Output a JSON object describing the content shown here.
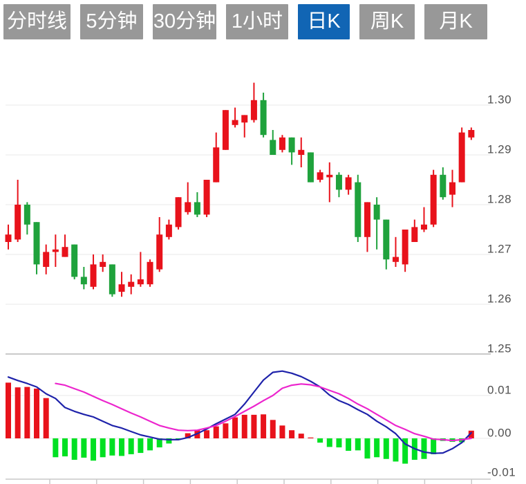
{
  "toolbar": {
    "tabs": [
      {
        "label": "分时线",
        "active": false
      },
      {
        "label": "5分钟",
        "active": false
      },
      {
        "label": "30分钟",
        "active": false
      },
      {
        "label": "1小时",
        "active": false
      },
      {
        "label": "日K",
        "active": true
      },
      {
        "label": "周K",
        "active": false
      },
      {
        "label": "月K",
        "active": false
      }
    ]
  },
  "colors": {
    "tab_inactive_bg": "#989898",
    "tab_active_bg": "#1165b4",
    "tab_text": "#ffffff",
    "candle_up": "#e8121b",
    "candle_down": "#1fa23c",
    "macd_up_bar": "#e8121b",
    "macd_down_bar": "#00e022",
    "dif_line": "#1e22aa",
    "dea_line": "#ec25cd",
    "grid_line": "#e8e8e8",
    "separator_line": "#c9c9c9",
    "axis_line": "#c9c9c9",
    "axis_label": "#505050",
    "background": "#ffffff"
  },
  "chart_data": {
    "type": "candlestick",
    "title": "",
    "legend_position": "none",
    "grid": true,
    "panels": [
      {
        "name": "price",
        "y_ticks": [
          "1.30",
          "1.29",
          "1.28",
          "1.27",
          "1.26",
          "1.25"
        ],
        "y_tick_values": [
          1.3,
          1.29,
          1.28,
          1.27,
          1.26,
          1.25
        ],
        "ylim": [
          1.2475,
          1.3075
        ]
      },
      {
        "name": "macd",
        "y_ticks": [
          "0.01",
          "0.00",
          "-0.01"
        ],
        "y_tick_values": [
          0.01,
          0.0,
          -0.01
        ],
        "ylim": [
          -0.0105,
          0.0165
        ]
      }
    ],
    "x_axis": {
      "tick_count": 10,
      "labels": []
    },
    "candles_format": [
      "open",
      "close",
      "high",
      "low"
    ],
    "candles": [
      [
        1.2725,
        1.274,
        1.276,
        1.271
      ],
      [
        1.273,
        1.28,
        1.285,
        1.2725
      ],
      [
        1.28,
        1.276,
        1.2805,
        1.274
      ],
      [
        1.2765,
        1.268,
        1.2765,
        1.266
      ],
      [
        1.2675,
        1.2705,
        1.272,
        1.266
      ],
      [
        1.2705,
        1.271,
        1.274,
        1.2675
      ],
      [
        1.2695,
        1.2715,
        1.274,
        1.2695
      ],
      [
        1.272,
        1.2655,
        1.272,
        1.265
      ],
      [
        1.2655,
        1.264,
        1.2675,
        1.263
      ],
      [
        1.2635,
        1.268,
        1.27,
        1.263
      ],
      [
        1.2675,
        1.2685,
        1.27,
        1.2665
      ],
      [
        1.268,
        1.262,
        1.268,
        1.2615
      ],
      [
        1.2625,
        1.264,
        1.2665,
        1.2615
      ],
      [
        1.2635,
        1.2645,
        1.266,
        1.262
      ],
      [
        1.264,
        1.265,
        1.2705,
        1.2635
      ],
      [
        1.264,
        1.2685,
        1.269,
        1.2635
      ],
      [
        1.267,
        1.274,
        1.2775,
        1.2665
      ],
      [
        1.2735,
        1.276,
        1.277,
        1.273
      ],
      [
        1.2755,
        1.2815,
        1.2815,
        1.275
      ],
      [
        1.2785,
        1.2805,
        1.2845,
        1.278
      ],
      [
        1.2805,
        1.278,
        1.2825,
        1.2775
      ],
      [
        1.278,
        1.285,
        1.285,
        1.2775
      ],
      [
        1.2845,
        1.2915,
        1.2945,
        1.2845
      ],
      [
        1.291,
        1.299,
        1.299,
        1.291
      ],
      [
        1.296,
        1.297,
        1.2995,
        1.2955
      ],
      [
        1.2965,
        1.298,
        1.298,
        1.2935
      ],
      [
        1.297,
        1.301,
        1.3045,
        1.2965
      ],
      [
        1.301,
        1.294,
        1.3025,
        1.2935
      ],
      [
        1.293,
        1.29,
        1.295,
        1.29
      ],
      [
        1.291,
        1.2935,
        1.294,
        1.2905
      ],
      [
        1.2935,
        1.2905,
        1.2935,
        1.288
      ],
      [
        1.29,
        1.291,
        1.2935,
        1.2875
      ],
      [
        1.2905,
        1.2845,
        1.2905,
        1.2845
      ],
      [
        1.285,
        1.2865,
        1.287,
        1.2845
      ],
      [
        1.2855,
        1.286,
        1.2885,
        1.2805
      ],
      [
        1.286,
        1.283,
        1.2865,
        1.2815
      ],
      [
        1.283,
        1.2855,
        1.286,
        1.282
      ],
      [
        1.2845,
        1.2735,
        1.286,
        1.2725
      ],
      [
        1.2735,
        1.2805,
        1.2805,
        1.2705
      ],
      [
        1.28,
        1.277,
        1.2815,
        1.271
      ],
      [
        1.277,
        1.269,
        1.277,
        1.267
      ],
      [
        1.2685,
        1.2695,
        1.2735,
        1.2675
      ],
      [
        1.268,
        1.275,
        1.275,
        1.2665
      ],
      [
        1.2725,
        1.2755,
        1.277,
        1.2725
      ],
      [
        1.275,
        1.276,
        1.2795,
        1.2745
      ],
      [
        1.276,
        1.286,
        1.287,
        1.2755
      ],
      [
        1.286,
        1.2815,
        1.2875,
        1.281
      ],
      [
        1.282,
        1.2845,
        1.287,
        1.2795
      ],
      [
        1.2845,
        1.2945,
        1.2955,
        1.2845
      ],
      [
        1.2935,
        1.295,
        1.2955,
        1.293
      ]
    ],
    "macd": {
      "histogram": [
        0.013,
        0.0119,
        0.012,
        0.0116,
        0.0094,
        -0.0044,
        -0.0042,
        -0.005,
        -0.0045,
        -0.0052,
        -0.0044,
        -0.004,
        -0.0041,
        -0.0037,
        -0.0034,
        -0.0028,
        -0.0021,
        -0.0012,
        -0.0003,
        0.0012,
        0.0019,
        0.0019,
        0.0028,
        0.0035,
        0.0049,
        0.0055,
        0.0055,
        0.0056,
        0.0043,
        0.003,
        0.0019,
        0.0011,
        0.0002,
        -0.001,
        -0.002,
        -0.0021,
        -0.0029,
        -0.0028,
        -0.0047,
        -0.0044,
        -0.0048,
        -0.0054,
        -0.0059,
        -0.005,
        -0.0048,
        -0.0037,
        -0.0006,
        -0.0008,
        -0.0009,
        0.0018
      ],
      "dif": [
        0.0143,
        0.0135,
        0.0128,
        0.012,
        0.0104,
        0.0093,
        0.0072,
        0.0063,
        0.0056,
        0.005,
        0.004,
        0.003,
        0.0024,
        0.0016,
        0.0008,
        0.0003,
        -0.0002,
        -0.0003,
        -0.0003,
        0.0002,
        0.0011,
        0.0022,
        0.0034,
        0.0045,
        0.0056,
        0.008,
        0.0108,
        0.0136,
        0.0154,
        0.0157,
        0.0152,
        0.0144,
        0.0133,
        0.012,
        0.0101,
        0.0088,
        0.0079,
        0.0067,
        0.0056,
        0.004,
        0.0027,
        0.0011,
        -0.0013,
        -0.0024,
        -0.0032,
        -0.0035,
        -0.0034,
        -0.0024,
        -0.001,
        0.0013
      ],
      "dea": [
        null,
        null,
        null,
        null,
        null,
        0.0128,
        0.0124,
        0.0116,
        0.0108,
        0.0098,
        0.0088,
        0.0079,
        0.0069,
        0.0059,
        0.005,
        0.004,
        0.003,
        0.0024,
        0.0019,
        0.0018,
        0.0019,
        0.0024,
        0.003,
        0.004,
        0.0051,
        0.0063,
        0.0075,
        0.0088,
        0.01,
        0.0117,
        0.0124,
        0.0127,
        0.0125,
        0.012,
        0.0112,
        0.0104,
        0.0093,
        0.008,
        0.0069,
        0.0056,
        0.0043,
        0.003,
        0.0021,
        0.0011,
        0.0005,
        -0.0002,
        -0.0003,
        -0.0005,
        -0.0003,
        0.0
      ]
    }
  }
}
